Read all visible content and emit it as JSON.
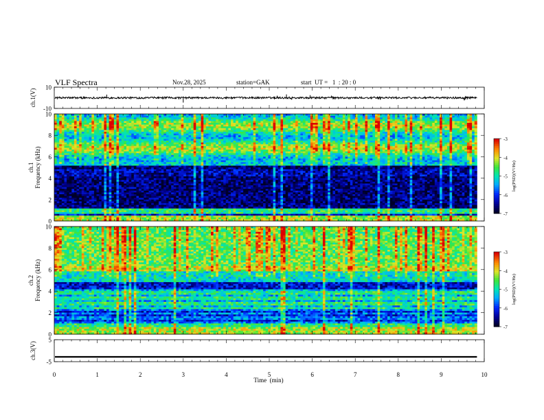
{
  "header": {
    "title": "VLF  Spectra",
    "date": "Nov.28, 2025",
    "station": "station=GAK",
    "start": "start  UT =   1  : 20 : 0"
  },
  "chart_data": {
    "type": "heatmap",
    "xlabel": "Time  (min)",
    "xlim": [
      0,
      10
    ],
    "x_ticks": [
      "0",
      "1",
      "2",
      "3",
      "4",
      "5",
      "6",
      "7",
      "8",
      "9",
      "10"
    ],
    "duration_min": 9.83,
    "panels": [
      {
        "id": "ch1-waveform",
        "type": "line",
        "ylabel": "ch.1(V)",
        "ylim": [
          -10,
          10
        ],
        "y_ticks": [
          {
            "v": 10,
            "t": "10"
          },
          {
            "v": -10,
            "t": "-10"
          }
        ],
        "baseline": 0,
        "noise_amplitude": 0.9
      },
      {
        "id": "ch1-spectrogram",
        "type": "heatmap",
        "ylabel_top": "ch.1",
        "ylabel": "Frequency  (kHz)",
        "ylim": [
          0,
          10
        ],
        "y_ticks": [
          "0",
          "2",
          "4",
          "6",
          "8",
          "10"
        ],
        "colorbar": {
          "label": "log(PSD)(V²/Hz)",
          "range": [
            -7,
            -3
          ],
          "ticks": [
            "-3",
            "-4",
            "-5",
            "-6",
            "-7"
          ]
        }
      },
      {
        "id": "ch2-spectrogram",
        "type": "heatmap",
        "ylabel_top": "ch.2",
        "ylabel": "Frequency  (kHz)",
        "ylim": [
          0,
          10
        ],
        "y_ticks": [
          "0",
          "2",
          "4",
          "6",
          "8",
          "10"
        ],
        "colorbar": {
          "label": "log(PSD)(V²/Hz)",
          "range": [
            -7,
            -3
          ],
          "ticks": [
            "-3",
            "-4",
            "-5",
            "-6",
            "-7"
          ]
        }
      },
      {
        "id": "ch3-waveform",
        "type": "line",
        "ylabel": "ch.3(V)",
        "ylim": [
          -5,
          5
        ],
        "y_ticks": [
          {
            "v": 5,
            "t": "5"
          },
          {
            "v": -5,
            "t": "-5"
          }
        ],
        "baseline": -2.8
      }
    ]
  }
}
